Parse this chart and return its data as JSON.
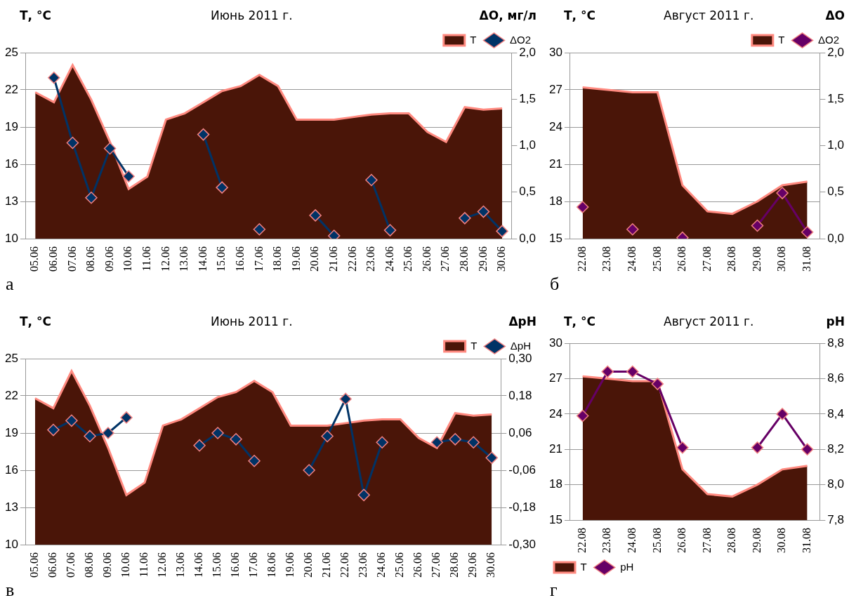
{
  "chart_data": [
    {
      "type": "area",
      "title": "Июнь 2011 г.",
      "ylabel": "Т, °С",
      "y2label": "ΔО, мг/л",
      "annotations": [
        "а"
      ],
      "categories": [
        "05.06",
        "06.06",
        "07.06",
        "08.06",
        "09.06",
        "10.06",
        "11.06",
        "12.06",
        "13.06",
        "14.06",
        "15.06",
        "16.06",
        "17.06",
        "18.06",
        "19.06",
        "20.06",
        "21.06",
        "22.06",
        "23.06",
        "24.06",
        "25.06",
        "26.06",
        "27.06",
        "28.06",
        "29.06",
        "30.06"
      ],
      "series": [
        {
          "name": "Т",
          "color": "#4a1508",
          "values": [
            21.8,
            21.0,
            24.0,
            21.2,
            17.8,
            14.0,
            15.0,
            19.6,
            20.1,
            21.0,
            21.9,
            22.3,
            23.2,
            22.3,
            19.6,
            19.6,
            19.6,
            19.8,
            20.0,
            20.1,
            20.1,
            18.6,
            17.8,
            20.6,
            20.4,
            20.5
          ]
        },
        {
          "name": "ΔO2",
          "type": "line",
          "marker": "diamond",
          "axis": "y2",
          "color": "#003366",
          "values": [
            null,
            1.73,
            1.03,
            0.44,
            0.97,
            0.67,
            null,
            null,
            null,
            1.12,
            0.55,
            null,
            0.1,
            null,
            null,
            0.25,
            0.03,
            null,
            0.63,
            0.09,
            null,
            null,
            null,
            0.22,
            0.29,
            0.08
          ]
        }
      ],
      "ylim": [
        10,
        25
      ],
      "yticks": [
        10,
        13,
        16,
        19,
        22,
        25
      ],
      "y2lim": [
        0,
        2
      ],
      "y2ticks": [
        {
          "value": 0,
          "label": "0,0"
        },
        {
          "value": 0.5,
          "label": "0,5"
        },
        {
          "value": 1,
          "label": "1,0"
        },
        {
          "value": 1.5,
          "label": "1,5"
        },
        {
          "value": 2,
          "label": "2,0"
        }
      ],
      "grid": "y",
      "legend": "top right"
    },
    {
      "type": "area",
      "title": "Август  2011 г.",
      "ylabel": "Т, °С",
      "y2label": "ΔО",
      "annotations": [
        "б"
      ],
      "categories": [
        "22.08",
        "23.08",
        "24.08",
        "25.08",
        "26.08",
        "27.08",
        "28.08",
        "29.08",
        "30.08",
        "31.08"
      ],
      "series": [
        {
          "name": "Т",
          "color": "#4a1508",
          "values": [
            27.2,
            27.0,
            26.8,
            26.8,
            19.3,
            17.2,
            17.0,
            18.0,
            19.3,
            19.6
          ]
        },
        {
          "name": "ΔO2",
          "type": "line",
          "marker": "diamond",
          "axis": "y2",
          "color": "#660066",
          "values": [
            0.34,
            null,
            0.1,
            null,
            0.01,
            null,
            null,
            0.14,
            0.49,
            0.07
          ]
        }
      ],
      "ylim": [
        15,
        30
      ],
      "yticks": [
        15,
        18,
        21,
        24,
        27,
        30
      ],
      "y2lim": [
        0,
        2
      ],
      "y2ticks": [
        {
          "value": 0,
          "label": "0,0"
        },
        {
          "value": 0.5,
          "label": "0,5"
        },
        {
          "value": 1,
          "label": "1,0"
        },
        {
          "value": 1.5,
          "label": "1,5"
        },
        {
          "value": 2,
          "label": "2,0"
        }
      ],
      "grid": "y",
      "legend": "top right"
    },
    {
      "type": "area",
      "title": "Июнь 2011 г.",
      "ylabel": "Т, °С",
      "y2label": "ΔрН",
      "annotations": [
        "в"
      ],
      "categories": [
        "05.06",
        "06.06",
        "07.06",
        "08.06",
        "09.06",
        "10.06",
        "11.06",
        "12.06",
        "13.06",
        "14.06",
        "15.06",
        "16.06",
        "17.06",
        "18.06",
        "19.06",
        "20.06",
        "21.06",
        "22.06",
        "23.06",
        "24.06",
        "25.06",
        "26.06",
        "27.06",
        "28.06",
        "29.06",
        "30.06"
      ],
      "series": [
        {
          "name": "Т",
          "color": "#4a1508",
          "values": [
            21.8,
            21.0,
            24.0,
            21.2,
            17.8,
            14.0,
            15.0,
            19.6,
            20.1,
            21.0,
            21.9,
            22.3,
            23.2,
            22.3,
            19.6,
            19.6,
            19.6,
            19.8,
            20.0,
            20.1,
            20.1,
            18.6,
            17.8,
            20.6,
            20.4,
            20.5
          ]
        },
        {
          "name": "ΔpH",
          "type": "line",
          "marker": "diamond",
          "axis": "y2",
          "color": "#003366",
          "values": [
            null,
            0.07,
            0.1,
            0.05,
            0.06,
            0.11,
            null,
            null,
            null,
            0.02,
            0.06,
            0.04,
            -0.03,
            null,
            null,
            -0.06,
            0.05,
            0.17,
            -0.14,
            0.03,
            null,
            null,
            0.03,
            0.04,
            0.03,
            -0.02
          ]
        }
      ],
      "ylim": [
        10,
        25
      ],
      "yticks": [
        10,
        13,
        16,
        19,
        22,
        25
      ],
      "y2lim": [
        -0.3,
        0.3
      ],
      "y2ticks": [
        {
          "value": -0.3,
          "label": "-0,30"
        },
        {
          "value": -0.18,
          "label": "-0,18"
        },
        {
          "value": -0.06,
          "label": "-0,06"
        },
        {
          "value": 0.06,
          "label": "0,06"
        },
        {
          "value": 0.18,
          "label": "0,18"
        },
        {
          "value": 0.3,
          "label": "0,30"
        }
      ],
      "grid": "y",
      "legend": "top right"
    },
    {
      "type": "area",
      "title": "Август  2011 г.",
      "ylabel": "Т, °С",
      "y2label": "рН",
      "annotations": [
        "г"
      ],
      "categories": [
        "22.08",
        "23.08",
        "24.08",
        "25.08",
        "26.08",
        "27.08",
        "28.08",
        "29.08",
        "30.08",
        "31.08"
      ],
      "series": [
        {
          "name": "Т",
          "color": "#4a1508",
          "values": [
            27.2,
            27.0,
            26.8,
            26.8,
            19.3,
            17.2,
            17.0,
            18.0,
            19.3,
            19.6
          ]
        },
        {
          "name": "pH",
          "type": "line",
          "marker": "diamond",
          "axis": "y2",
          "color": "#660066",
          "values": [
            8.39,
            8.64,
            8.64,
            8.57,
            8.21,
            null,
            null,
            8.21,
            8.4,
            8.2
          ]
        }
      ],
      "ylim": [
        15,
        30
      ],
      "yticks": [
        15,
        18,
        21,
        24,
        27,
        30
      ],
      "y2lim": [
        7.8,
        8.8
      ],
      "y2ticks": [
        {
          "value": 7.8,
          "label": "7,8"
        },
        {
          "value": 8,
          "label": "8,0"
        },
        {
          "value": 8.2,
          "label": "8,2"
        },
        {
          "value": 8.4,
          "label": "8,4"
        },
        {
          "value": 8.6,
          "label": "8,6"
        },
        {
          "value": 8.8,
          "label": "8,8"
        }
      ],
      "grid": "y",
      "legend": "bottom left"
    }
  ]
}
